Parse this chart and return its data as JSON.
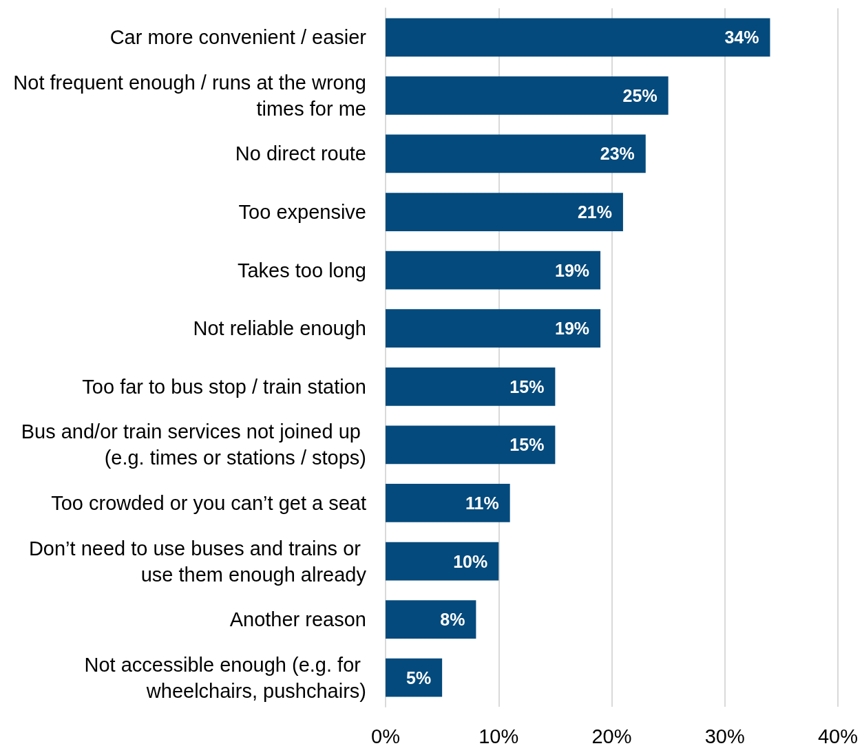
{
  "chart_data": {
    "type": "bar",
    "orientation": "horizontal",
    "categories": [
      "Car more convenient / easier",
      "Not frequent enough / runs at the wrong times for me",
      "No direct route",
      "Too expensive",
      "Takes too long",
      "Not reliable enough",
      "Too far to bus stop / train station",
      "Bus and/or train services not joined up (e.g. times or stations / stops)",
      "Too crowded or you can’t get a seat",
      "Don’t need to use buses and trains or use them enough already",
      "Another reason",
      "Not accessible enough (e.g. for wheelchairs, pushchairs)"
    ],
    "series": [
      {
        "color": "#044a7c",
        "values": [
          34,
          25,
          23,
          21,
          19,
          19,
          15,
          15,
          11,
          10,
          8,
          5
        ]
      }
    ],
    "xlim": [
      0,
      40
    ],
    "xticks": [
      {
        "value": 0,
        "label": "0%"
      },
      {
        "value": 10,
        "label": "10%"
      },
      {
        "value": 20,
        "label": "20%"
      },
      {
        "value": 30,
        "label": "30%"
      },
      {
        "value": 40,
        "label": "40%"
      }
    ],
    "value_labels": [
      "34%",
      "25%",
      "23%",
      "21%",
      "19%",
      "19%",
      "15%",
      "15%",
      "11%",
      "10%",
      "8%",
      "5%"
    ],
    "grid": "x"
  }
}
